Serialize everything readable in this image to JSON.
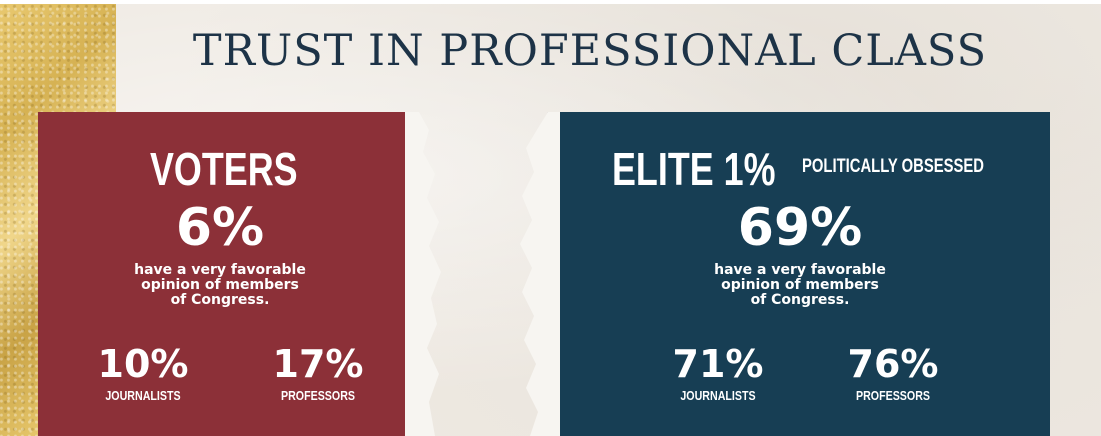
{
  "title": "TRUST IN PROFESSIONAL CLASS",
  "voters": {
    "heading": "VOTERS",
    "congress_pct": "6%",
    "congress_caption": "have a very favorable\nopinion of members\nof Congress.",
    "journalists_pct": "10%",
    "journalists_label": "JOURNALISTS",
    "professors_pct": "17%",
    "professors_label": "PROFESSORS"
  },
  "elite": {
    "heading": "ELITE 1%",
    "subheading": "POLITICALLY OBSESSED",
    "congress_pct": "69%",
    "congress_caption": "have a very favorable\nopinion of members\nof Congress.",
    "journalists_pct": "71%",
    "journalists_label": "JOURNALISTS",
    "professors_pct": "76%",
    "professors_label": "PROFESSORS"
  },
  "colors": {
    "voters_panel": "#8c3038",
    "elite_panel": "#173e54",
    "title_text": "#1d3347",
    "gold_accent": "#d6b253"
  }
}
